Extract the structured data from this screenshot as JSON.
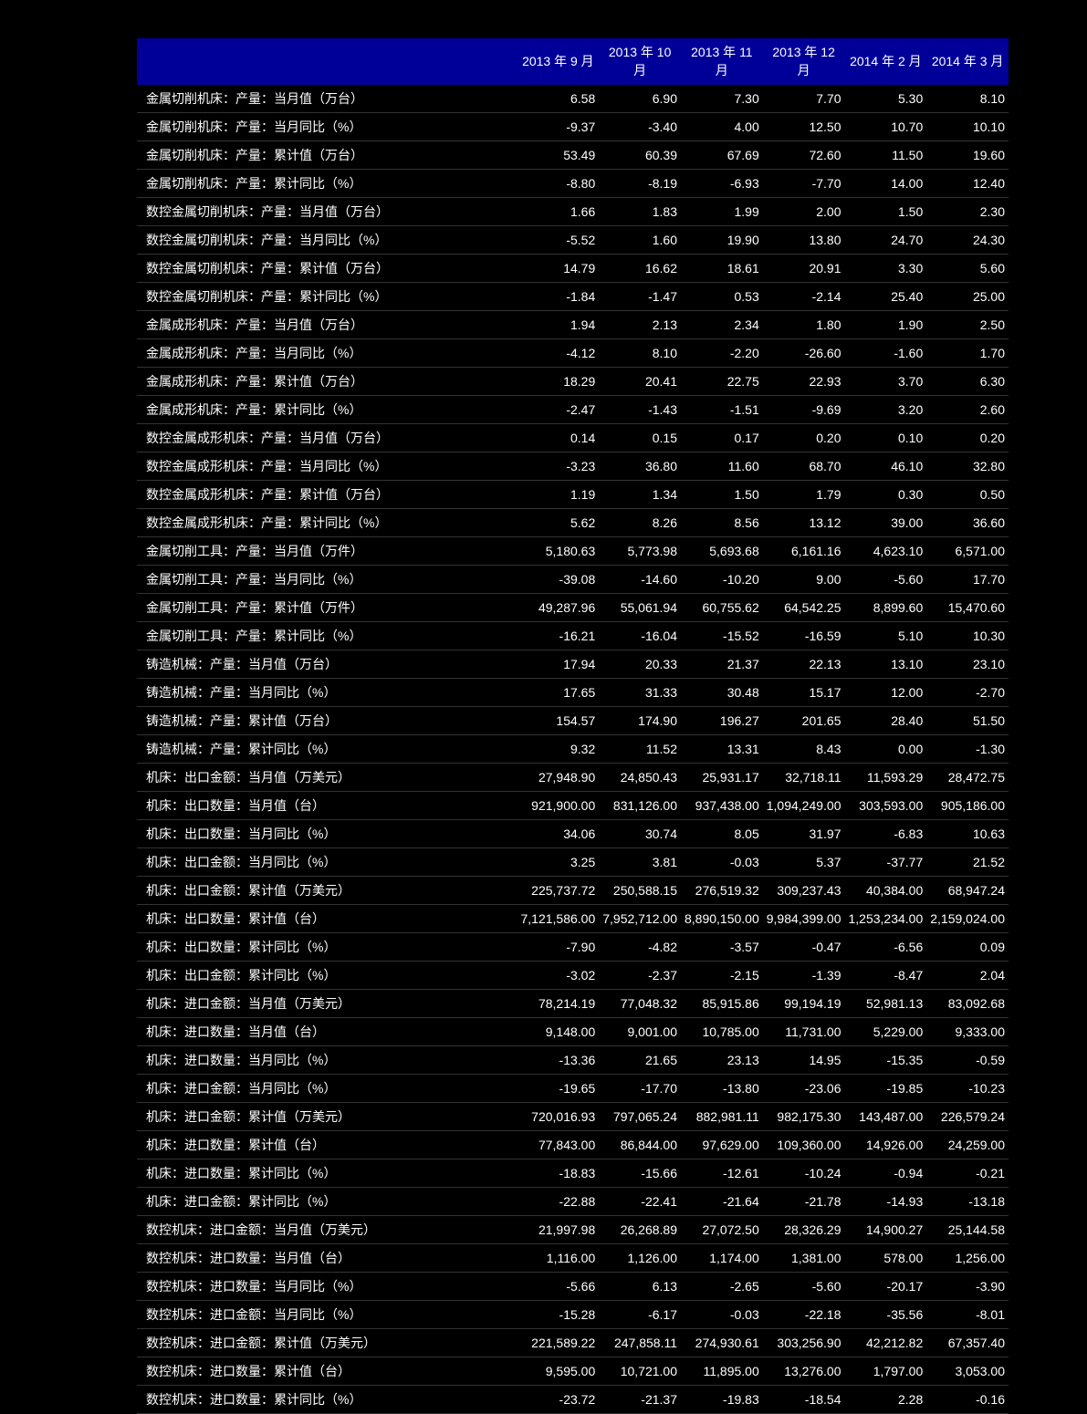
{
  "table": {
    "type": "table",
    "header_background_color": "#000099",
    "header_text_color": "#ffffff",
    "body_background_color": "#000000",
    "body_text_color": "#ffffff",
    "border_color": "#333333",
    "font_size": 14,
    "label_column_width": 450,
    "data_column_width": 84,
    "columns": [
      "",
      "2013 年 9 月",
      "2013 年 10 月",
      "2013 年 11 月",
      "2013 年 12 月",
      "2014 年 2 月",
      "2014 年 3 月"
    ],
    "rows": [
      {
        "label": "金属切削机床：产量：当月值（万台）",
        "values": [
          "6.58",
          "6.90",
          "7.30",
          "7.70",
          "5.30",
          "8.10"
        ]
      },
      {
        "label": "金属切削机床：产量：当月同比（%）",
        "values": [
          "-9.37",
          "-3.40",
          "4.00",
          "12.50",
          "10.70",
          "10.10"
        ]
      },
      {
        "label": "金属切削机床：产量：累计值（万台）",
        "values": [
          "53.49",
          "60.39",
          "67.69",
          "72.60",
          "11.50",
          "19.60"
        ]
      },
      {
        "label": "金属切削机床：产量：累计同比（%）",
        "values": [
          "-8.80",
          "-8.19",
          "-6.93",
          "-7.70",
          "14.00",
          "12.40"
        ]
      },
      {
        "label": "数控金属切削机床：产量：当月值（万台）",
        "values": [
          "1.66",
          "1.83",
          "1.99",
          "2.00",
          "1.50",
          "2.30"
        ]
      },
      {
        "label": "数控金属切削机床：产量：当月同比（%）",
        "values": [
          "-5.52",
          "1.60",
          "19.90",
          "13.80",
          "24.70",
          "24.30"
        ]
      },
      {
        "label": "数控金属切削机床：产量：累计值（万台）",
        "values": [
          "14.79",
          "16.62",
          "18.61",
          "20.91",
          "3.30",
          "5.60"
        ]
      },
      {
        "label": "数控金属切削机床：产量：累计同比（%）",
        "values": [
          "-1.84",
          "-1.47",
          "0.53",
          "-2.14",
          "25.40",
          "25.00"
        ]
      },
      {
        "label": "金属成形机床：产量：当月值（万台）",
        "values": [
          "1.94",
          "2.13",
          "2.34",
          "1.80",
          "1.90",
          "2.50"
        ]
      },
      {
        "label": "金属成形机床：产量：当月同比（%）",
        "values": [
          "-4.12",
          "8.10",
          "-2.20",
          "-26.60",
          "-1.60",
          "1.70"
        ]
      },
      {
        "label": "金属成形机床：产量：累计值（万台）",
        "values": [
          "18.29",
          "20.41",
          "22.75",
          "22.93",
          "3.70",
          "6.30"
        ]
      },
      {
        "label": "金属成形机床：产量：累计同比（%）",
        "values": [
          "-2.47",
          "-1.43",
          "-1.51",
          "-9.69",
          "3.20",
          "2.60"
        ]
      },
      {
        "label": "数控金属成形机床：产量：当月值（万台）",
        "values": [
          "0.14",
          "0.15",
          "0.17",
          "0.20",
          "0.10",
          "0.20"
        ]
      },
      {
        "label": "数控金属成形机床：产量：当月同比（%）",
        "values": [
          "-3.23",
          "36.80",
          "11.60",
          "68.70",
          "46.10",
          "32.80"
        ]
      },
      {
        "label": "数控金属成形机床：产量：累计值（万台）",
        "values": [
          "1.19",
          "1.34",
          "1.50",
          "1.79",
          "0.30",
          "0.50"
        ]
      },
      {
        "label": "数控金属成形机床：产量：累计同比（%）",
        "values": [
          "5.62",
          "8.26",
          "8.56",
          "13.12",
          "39.00",
          "36.60"
        ]
      },
      {
        "label": "金属切削工具：产量：当月值（万件）",
        "values": [
          "5,180.63",
          "5,773.98",
          "5,693.68",
          "6,161.16",
          "4,623.10",
          "6,571.00"
        ]
      },
      {
        "label": "金属切削工具：产量：当月同比（%）",
        "values": [
          "-39.08",
          "-14.60",
          "-10.20",
          "9.00",
          "-5.60",
          "17.70"
        ]
      },
      {
        "label": "金属切削工具：产量：累计值（万件）",
        "values": [
          "49,287.96",
          "55,061.94",
          "60,755.62",
          "64,542.25",
          "8,899.60",
          "15,470.60"
        ]
      },
      {
        "label": "金属切削工具：产量：累计同比（%）",
        "values": [
          "-16.21",
          "-16.04",
          "-15.52",
          "-16.59",
          "5.10",
          "10.30"
        ]
      },
      {
        "label": "铸造机械：产量：当月值（万台）",
        "values": [
          "17.94",
          "20.33",
          "21.37",
          "22.13",
          "13.10",
          "23.10"
        ]
      },
      {
        "label": "铸造机械：产量：当月同比（%）",
        "values": [
          "17.65",
          "31.33",
          "30.48",
          "15.17",
          "12.00",
          "-2.70"
        ]
      },
      {
        "label": "铸造机械：产量：累计值（万台）",
        "values": [
          "154.57",
          "174.90",
          "196.27",
          "201.65",
          "28.40",
          "51.50"
        ]
      },
      {
        "label": "铸造机械：产量：累计同比（%）",
        "values": [
          "9.32",
          "11.52",
          "13.31",
          "8.43",
          "0.00",
          "-1.30"
        ]
      },
      {
        "label": "机床：出口金额：当月值（万美元）",
        "values": [
          "27,948.90",
          "24,850.43",
          "25,931.17",
          "32,718.11",
          "11,593.29",
          "28,472.75"
        ]
      },
      {
        "label": "机床：出口数量：当月值（台）",
        "values": [
          "921,900.00",
          "831,126.00",
          "937,438.00",
          "1,094,249.00",
          "303,593.00",
          "905,186.00"
        ]
      },
      {
        "label": "机床：出口数量：当月同比（%）",
        "values": [
          "34.06",
          "30.74",
          "8.05",
          "31.97",
          "-6.83",
          "10.63"
        ]
      },
      {
        "label": "机床：出口金额：当月同比（%）",
        "values": [
          "3.25",
          "3.81",
          "-0.03",
          "5.37",
          "-37.77",
          "21.52"
        ]
      },
      {
        "label": "机床：出口金额：累计值（万美元）",
        "values": [
          "225,737.72",
          "250,588.15",
          "276,519.32",
          "309,237.43",
          "40,384.00",
          "68,947.24"
        ]
      },
      {
        "label": "机床：出口数量：累计值（台）",
        "values": [
          "7,121,586.00",
          "7,952,712.00",
          "8,890,150.00",
          "9,984,399.00",
          "1,253,234.00",
          "2,159,024.00"
        ]
      },
      {
        "label": "机床：出口数量：累计同比（%）",
        "values": [
          "-7.90",
          "-4.82",
          "-3.57",
          "-0.47",
          "-6.56",
          "0.09"
        ]
      },
      {
        "label": "机床：出口金额：累计同比（%）",
        "values": [
          "-3.02",
          "-2.37",
          "-2.15",
          "-1.39",
          "-8.47",
          "2.04"
        ]
      },
      {
        "label": "机床：进口金额：当月值（万美元）",
        "values": [
          "78,214.19",
          "77,048.32",
          "85,915.86",
          "99,194.19",
          "52,981.13",
          "83,092.68"
        ]
      },
      {
        "label": "机床：进口数量：当月值（台）",
        "values": [
          "9,148.00",
          "9,001.00",
          "10,785.00",
          "11,731.00",
          "5,229.00",
          "9,333.00"
        ]
      },
      {
        "label": "机床：进口数量：当月同比（%）",
        "values": [
          "-13.36",
          "21.65",
          "23.13",
          "14.95",
          "-15.35",
          "-0.59"
        ]
      },
      {
        "label": "机床：进口金额：当月同比（%）",
        "values": [
          "-19.65",
          "-17.70",
          "-13.80",
          "-23.06",
          "-19.85",
          "-10.23"
        ]
      },
      {
        "label": "机床：进口金额：累计值（万美元）",
        "values": [
          "720,016.93",
          "797,065.24",
          "882,981.11",
          "982,175.30",
          "143,487.00",
          "226,579.24"
        ]
      },
      {
        "label": "机床：进口数量：累计值（台）",
        "values": [
          "77,843.00",
          "86,844.00",
          "97,629.00",
          "109,360.00",
          "14,926.00",
          "24,259.00"
        ]
      },
      {
        "label": "机床：进口数量：累计同比（%）",
        "values": [
          "-18.83",
          "-15.66",
          "-12.61",
          "-10.24",
          "-0.94",
          "-0.21"
        ]
      },
      {
        "label": "机床：进口金额：累计同比（%）",
        "values": [
          "-22.88",
          "-22.41",
          "-21.64",
          "-21.78",
          "-14.93",
          "-13.18"
        ]
      },
      {
        "label": "数控机床：进口金额：当月值（万美元）",
        "values": [
          "21,997.98",
          "26,268.89",
          "27,072.50",
          "28,326.29",
          "14,900.27",
          "25,144.58"
        ]
      },
      {
        "label": "数控机床：进口数量：当月值（台）",
        "values": [
          "1,116.00",
          "1,126.00",
          "1,174.00",
          "1,381.00",
          "578.00",
          "1,256.00"
        ]
      },
      {
        "label": "数控机床：进口数量：当月同比（%）",
        "values": [
          "-5.66",
          "6.13",
          "-2.65",
          "-5.60",
          "-20.17",
          "-3.90"
        ]
      },
      {
        "label": "数控机床：进口金额：当月同比（%）",
        "values": [
          "-15.28",
          "-6.17",
          "-0.03",
          "-22.18",
          "-35.56",
          "-8.01"
        ]
      },
      {
        "label": "数控机床：进口金额：累计值（万美元）",
        "values": [
          "221,589.22",
          "247,858.11",
          "274,930.61",
          "303,256.90",
          "42,212.82",
          "67,357.40"
        ]
      },
      {
        "label": "数控机床：进口数量：累计值（台）",
        "values": [
          "9,595.00",
          "10,721.00",
          "11,895.00",
          "13,276.00",
          "1,797.00",
          "3,053.00"
        ]
      },
      {
        "label": "数控机床：进口数量：累计同比（%）",
        "values": [
          "-23.72",
          "-21.37",
          "-19.83",
          "-18.54",
          "2.28",
          "-0.16"
        ]
      }
    ]
  }
}
